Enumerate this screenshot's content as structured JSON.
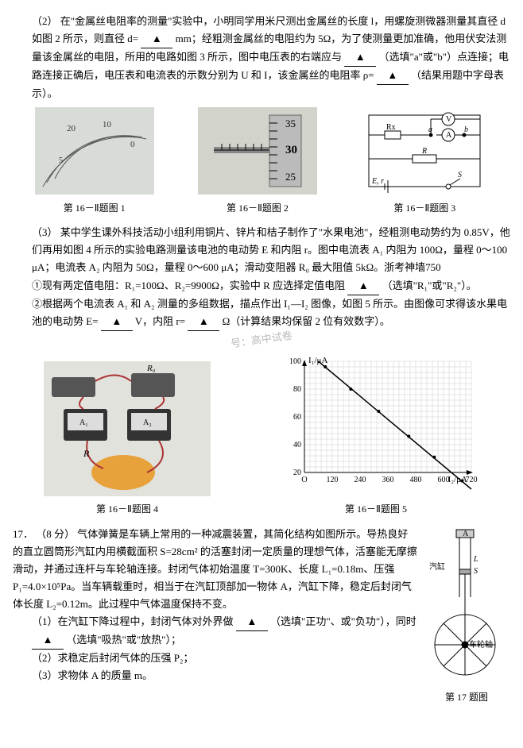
{
  "q2": {
    "label": "（2）",
    "text1": "在\"金属丝电阻率的测量\"实验中，小明同学用米尺测出金属丝的长度 l，用螺旋测微器测量其直径 d 如图 2 所示，则直径 d=",
    "blank1": "▲",
    "text2": "mm；经粗测金属丝的电阻约为 5Ω，为了使测量更加准确，他用伏安法测量该金属丝的电阻，所用的电路如图 3 所示，图中电压表的右端应与",
    "blank2": "▲",
    "text3": "（选填\"a\"或\"b\"）点连接；电路连接正确后，电压表和电流表的示数分别为 U 和 I，该金属丝的电阻率 ρ=",
    "blank3": "▲",
    "text4": "（结果用题中字母表示）。",
    "fig1_caption": "第 16－Ⅱ题图 1",
    "fig2_caption": "第 16－Ⅱ题图 2",
    "fig3_caption": "第 16－Ⅱ题图 3",
    "fig2_labels": {
      "t": "35",
      "m": "30",
      "b": "25"
    },
    "fig3_labels": {
      "v": "V",
      "rx": "Rx",
      "a": "a",
      "b": "b",
      "A": "A",
      "R": "R",
      "E": "E, r",
      "S": "S"
    }
  },
  "q3": {
    "label": "（3）",
    "text1": "某中学生课外科技活动小组利用铜片、锌片和桔子制作了\"水果电池\"，经粗测电动势约为 0.85V，他们再用如图 4 所示的实验电路测量该电池的电动势 E 和内阻 r。图中电流表 A₁ 内阻为 100Ω，量程 0～100 μA；电流表 A₂ 内阻为 50Ω，量程 0～600 μA；滑动变阻器 R₀ 最大阻值 5kΩ。浙考神墙750",
    "p1_a": "①现有两定值电阻：R₁=100Ω、R₂=9900Ω，实验中 R 应选择定值电阻",
    "p1_blank": "▲",
    "p1_b": "（选填\"R₁\"或\"R₂\"）。",
    "p2_a": "②根据两个电流表 A₁ 和 A₂ 测量的多组数据，描点作出 I₁—I₂ 图像，如图 5 所示。由图像可求得该水果电池的电动势 E=",
    "p2_blank1": "▲",
    "p2_b": "V，内阻 r=",
    "p2_blank2": "▲",
    "p2_c": "Ω（计算结果均保留 2 位有效数字）。",
    "watermark": "号：高中试卷",
    "fig4_caption": "第 16－Ⅱ题图 4",
    "fig5_caption": "第 16－Ⅱ题图 5",
    "fig4_labels": {
      "R0": "R₀",
      "A1": "A₁",
      "A2": "A₂",
      "R": "R"
    },
    "graph": {
      "ylabel": "I₁/μA",
      "xlabel": "I₂/μA",
      "yticks": [
        20,
        40,
        60,
        80,
        100
      ],
      "xticks": [
        0,
        120,
        240,
        360,
        480,
        600,
        720
      ],
      "grid_color": "#ccc",
      "axis_color": "#000",
      "line_color": "#000",
      "points": [
        [
          90,
          96
        ],
        [
          200,
          80
        ],
        [
          320,
          64
        ],
        [
          450,
          46
        ],
        [
          560,
          31
        ],
        [
          680,
          14
        ]
      ],
      "line": {
        "x1": 60,
        "y1": 100,
        "x2": 720,
        "y2": 8
      }
    }
  },
  "q17": {
    "label": "17．",
    "score": "（8 分）",
    "text1": "气体弹簧是车辆上常用的一种减震装置，其简化结构如图所示。导热良好的直立圆筒形汽缸内用横截面积 S=28cm² 的活塞封闭一定质量的理想气体，活塞能无摩擦滑动，并通过连杆与车轮轴连接。封闭气体初始温度 T=300K、长度 L₁=0.18m、压强 P₁=4.0×10⁵Pa。当车辆载重时，相当于在汽缸顶部加一物体 A，汽缸下降，稳定后封闭气体长度 L₂=0.12m。此过程中气体温度保持不变。",
    "sub1_a": "（1）在汽缸下降过程中，封闭气体对外界做",
    "sub1_blank1": "▲",
    "sub1_b": "（选填\"正功\"、或\"负功\"），同时",
    "sub1_blank2": "▲",
    "sub1_c": "（选填\"吸热\"或\"放热\"）；",
    "sub2": "（2）求稳定后封闭气体的压强 P₂；",
    "sub3": "（3）求物体 A 的质量 m。",
    "fig_caption": "第 17 题图",
    "fig_labels": {
      "A": "A",
      "gas": "汽缸",
      "L": "L",
      "S": "S",
      "axle": "车轮轴"
    }
  }
}
